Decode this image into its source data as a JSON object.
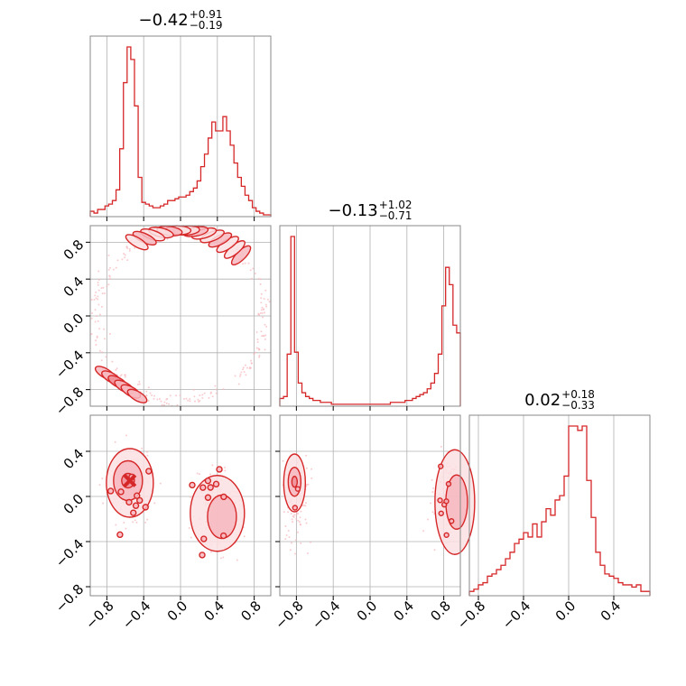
{
  "chart_data": {
    "type": "corner",
    "color": "#d62728",
    "fill_color": "#f4a3a8",
    "grid": true,
    "parameters": [
      {
        "title": {
          "median": "−0.42",
          "plus": "+0.91",
          "minus": "−0.19"
        },
        "range": [
          -0.98,
          0.98
        ],
        "ticks": [
          -0.8,
          -0.4,
          0.0,
          0.4,
          0.8
        ],
        "tick_labels": [
          "−0.8",
          "−0.4",
          "0.0",
          "0.4",
          "0.8"
        ],
        "hist": {
          "bins": [
            -0.96,
            -0.92,
            -0.88,
            -0.84,
            -0.8,
            -0.76,
            -0.72,
            -0.68,
            -0.64,
            -0.6,
            -0.56,
            -0.52,
            -0.48,
            -0.44,
            -0.4,
            -0.36,
            -0.32,
            -0.28,
            -0.24,
            -0.2,
            -0.16,
            -0.12,
            -0.08,
            -0.04,
            0.0,
            0.04,
            0.08,
            0.12,
            0.16,
            0.2,
            0.24,
            0.28,
            0.32,
            0.36,
            0.4,
            0.44,
            0.48,
            0.52,
            0.56,
            0.6,
            0.64,
            0.68,
            0.72,
            0.76,
            0.8,
            0.84,
            0.88,
            0.92,
            0.96
          ],
          "counts": [
            0.03,
            0.02,
            0.04,
            0.04,
            0.06,
            0.07,
            0.09,
            0.15,
            0.38,
            0.75,
            0.95,
            0.88,
            0.62,
            0.22,
            0.08,
            0.07,
            0.06,
            0.05,
            0.05,
            0.06,
            0.07,
            0.09,
            0.09,
            0.1,
            0.11,
            0.11,
            0.12,
            0.14,
            0.16,
            0.2,
            0.28,
            0.35,
            0.44,
            0.53,
            0.48,
            0.48,
            0.56,
            0.48,
            0.4,
            0.3,
            0.22,
            0.17,
            0.12,
            0.09,
            0.05,
            0.03,
            0.02,
            0.01,
            0.01
          ]
        }
      },
      {
        "title": {
          "median": "−0.13",
          "plus": "+1.02",
          "minus": "−0.71"
        },
        "range": [
          -0.98,
          0.98
        ],
        "ticks": [
          -0.8,
          -0.4,
          0.0,
          0.4,
          0.8
        ],
        "tick_labels": [
          "−0.8",
          "−0.4",
          "0.0",
          "0.4",
          "0.8"
        ],
        "hist": {
          "bins": [
            -0.96,
            -0.92,
            -0.88,
            -0.84,
            -0.8,
            -0.76,
            -0.72,
            -0.68,
            -0.64,
            -0.6,
            -0.56,
            -0.52,
            -0.48,
            -0.44,
            -0.4,
            -0.36,
            -0.32,
            -0.28,
            -0.24,
            -0.2,
            -0.16,
            -0.12,
            -0.08,
            -0.04,
            0.0,
            0.04,
            0.08,
            0.12,
            0.16,
            0.2,
            0.24,
            0.28,
            0.32,
            0.36,
            0.4,
            0.44,
            0.48,
            0.52,
            0.56,
            0.6,
            0.64,
            0.68,
            0.72,
            0.76,
            0.8,
            0.84,
            0.88,
            0.92,
            0.96
          ],
          "counts": [
            0.04,
            0.05,
            0.27,
            0.88,
            0.28,
            0.12,
            0.07,
            0.05,
            0.04,
            0.03,
            0.03,
            0.02,
            0.02,
            0.02,
            0.01,
            0.01,
            0.01,
            0.01,
            0.01,
            0.01,
            0.01,
            0.01,
            0.01,
            0.01,
            0.01,
            0.01,
            0.01,
            0.01,
            0.01,
            0.01,
            0.02,
            0.02,
            0.02,
            0.02,
            0.03,
            0.03,
            0.04,
            0.05,
            0.06,
            0.07,
            0.09,
            0.12,
            0.17,
            0.27,
            0.52,
            0.72,
            0.63,
            0.42,
            0.38
          ]
        }
      },
      {
        "title": {
          "median": "0.02",
          "plus": "+0.18",
          "minus": "−0.33"
        },
        "range": [
          -0.88,
          0.72
        ],
        "ticks": [
          -0.8,
          -0.4,
          0.0,
          0.4
        ],
        "tick_labels": [
          "−0.8",
          "−0.4",
          "0.0",
          "0.4"
        ],
        "hist": {
          "bins": [
            -0.86,
            -0.82,
            -0.78,
            -0.74,
            -0.7,
            -0.66,
            -0.62,
            -0.58,
            -0.54,
            -0.5,
            -0.46,
            -0.42,
            -0.38,
            -0.34,
            -0.3,
            -0.26,
            -0.22,
            -0.18,
            -0.14,
            -0.1,
            -0.06,
            -0.02,
            0.02,
            0.06,
            0.1,
            0.14,
            0.18,
            0.22,
            0.26,
            0.3,
            0.34,
            0.38,
            0.42,
            0.46,
            0.5,
            0.54,
            0.58,
            0.62,
            0.66,
            0.7
          ],
          "counts": [
            0.02,
            0.03,
            0.05,
            0.06,
            0.09,
            0.1,
            0.12,
            0.14,
            0.17,
            0.2,
            0.24,
            0.26,
            0.29,
            0.27,
            0.33,
            0.27,
            0.34,
            0.4,
            0.37,
            0.44,
            0.46,
            0.55,
            0.78,
            0.78,
            0.76,
            0.78,
            0.53,
            0.36,
            0.2,
            0.14,
            0.1,
            0.09,
            0.08,
            0.06,
            0.05,
            0.05,
            0.04,
            0.05,
            0.02,
            0.02
          ]
        }
      }
    ],
    "contours": [
      {
        "x_param": 0,
        "y_param": 1,
        "note_shape": "arc"
      },
      {
        "x_param": 0,
        "y_param": 2,
        "note_shape": "two-blobs"
      },
      {
        "x_param": 1,
        "y_param": 2,
        "note_shape": "two-lobes"
      }
    ]
  }
}
